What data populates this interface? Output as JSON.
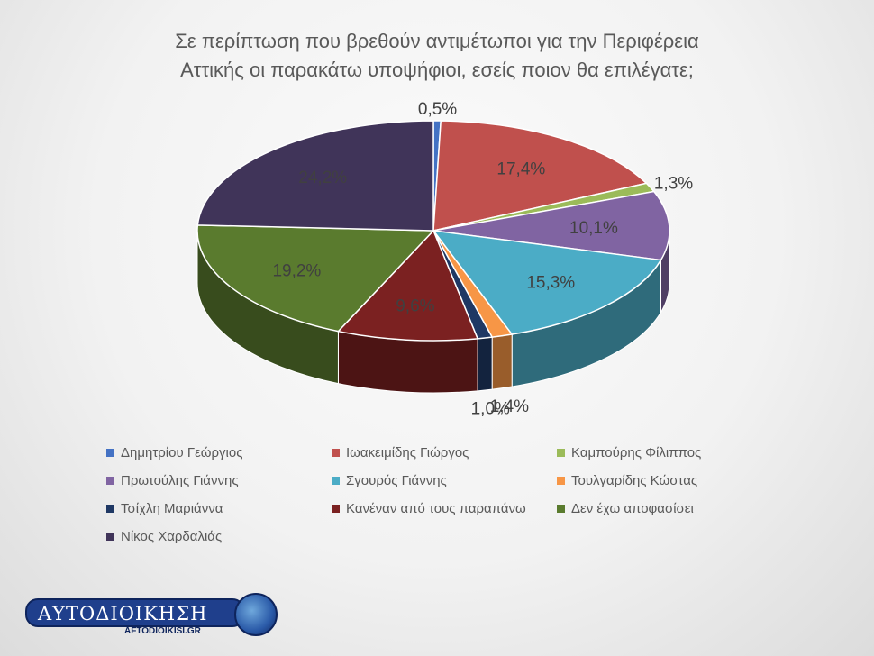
{
  "title": {
    "line1": "Σε περίπτωση που βρεθούν αντιμέτωποι για την Περιφέρεια",
    "line2": "Αττικής οι παρακάτω υποψήφιοι, εσείς ποιον θα επιλέγατε;"
  },
  "chart_data": {
    "type": "pie",
    "title": "Σε περίπτωση που βρεθούν αντιμέτωποι για την Περιφέρεια Αττικής οι παρακάτω υποψήφιοι, εσείς ποιον θα επιλέγατε;",
    "legend_position": "bottom",
    "slices": [
      {
        "label": "Δημητρίου Γεώργιος",
        "value": 0.5,
        "display": "0,5%",
        "color": "#4472c4"
      },
      {
        "label": "Ιωακειμίδης Γιώργος",
        "value": 17.4,
        "display": "17,4%",
        "color": "#c0504d"
      },
      {
        "label": "Καμπούρης Φίλιππος",
        "value": 1.3,
        "display": "1,3%",
        "color": "#9bbb59"
      },
      {
        "label": "Πρωτούλης Γιάννης",
        "value": 10.1,
        "display": "10,1%",
        "color": "#8064a2"
      },
      {
        "label": "Σγουρός Γιάννης",
        "value": 15.3,
        "display": "15,3%",
        "color": "#4bacc6"
      },
      {
        "label": "Τουλγαρίδης Κώστας",
        "value": 1.4,
        "display": "1,4%",
        "color": "#f79646"
      },
      {
        "label": "Τσίχλη Μαριάννα",
        "value": 1.0,
        "display": "1,0%",
        "color": "#1f3864"
      },
      {
        "label": "Κανέναν από τους παραπάνω",
        "value": 9.6,
        "display": "9,6%",
        "color": "#7b2121"
      },
      {
        "label": "Δεν έχω αποφασίσει",
        "value": 19.2,
        "display": "19,2%",
        "color": "#5a7b2e"
      },
      {
        "label": "Νίκος Χαρδαλιάς",
        "value": 24.2,
        "display": "24,2%",
        "color": "#403459"
      }
    ]
  },
  "logo": {
    "text": "ΑΥΤΟΔΙΟΙΚΗΣΗ",
    "subtext": "AFTODIOIKISI.GR"
  }
}
